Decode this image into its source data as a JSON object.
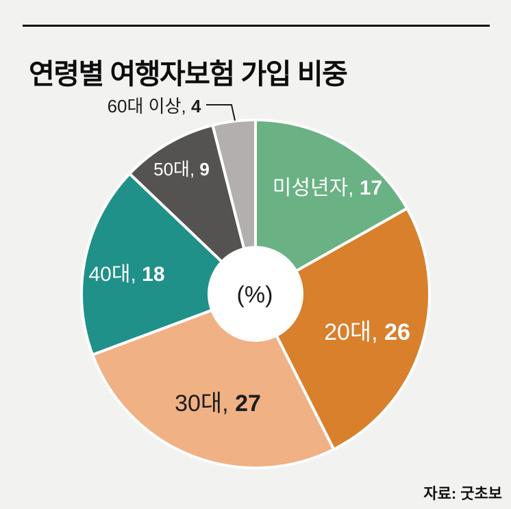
{
  "header": {
    "title": "연령별 여행자보험 가입 비중"
  },
  "footer": {
    "source": "자료: 굿초보"
  },
  "chart_data": {
    "type": "pie",
    "subtype": "donut",
    "title": "연령별 여행자보험 가입 비중",
    "center_label": "(%)",
    "unit": "%",
    "categories": [
      "미성년자",
      "20대",
      "30대",
      "40대",
      "50대",
      "60대 이상"
    ],
    "values": [
      17,
      26,
      27,
      18,
      9,
      4
    ],
    "slugs": [
      "minors",
      "20s",
      "30s",
      "40s",
      "50s",
      "60s-plus"
    ],
    "colors": [
      "#6ab283",
      "#d8802c",
      "#f0b184",
      "#1f9189",
      "#545352",
      "#b3afae"
    ],
    "label_colors": [
      "#ffffff",
      "#ffffff",
      "#1c1c1c",
      "#ffffff",
      "#ffffff",
      "#1c1c1c"
    ],
    "slice_border_color": "#ffffff",
    "background_color": "#f2f2f0",
    "start_angle": "top",
    "direction": "clockwise",
    "legend_position": "labels-on-slices",
    "callout_category": "60대 이상",
    "source": "자료: 굿초보"
  }
}
